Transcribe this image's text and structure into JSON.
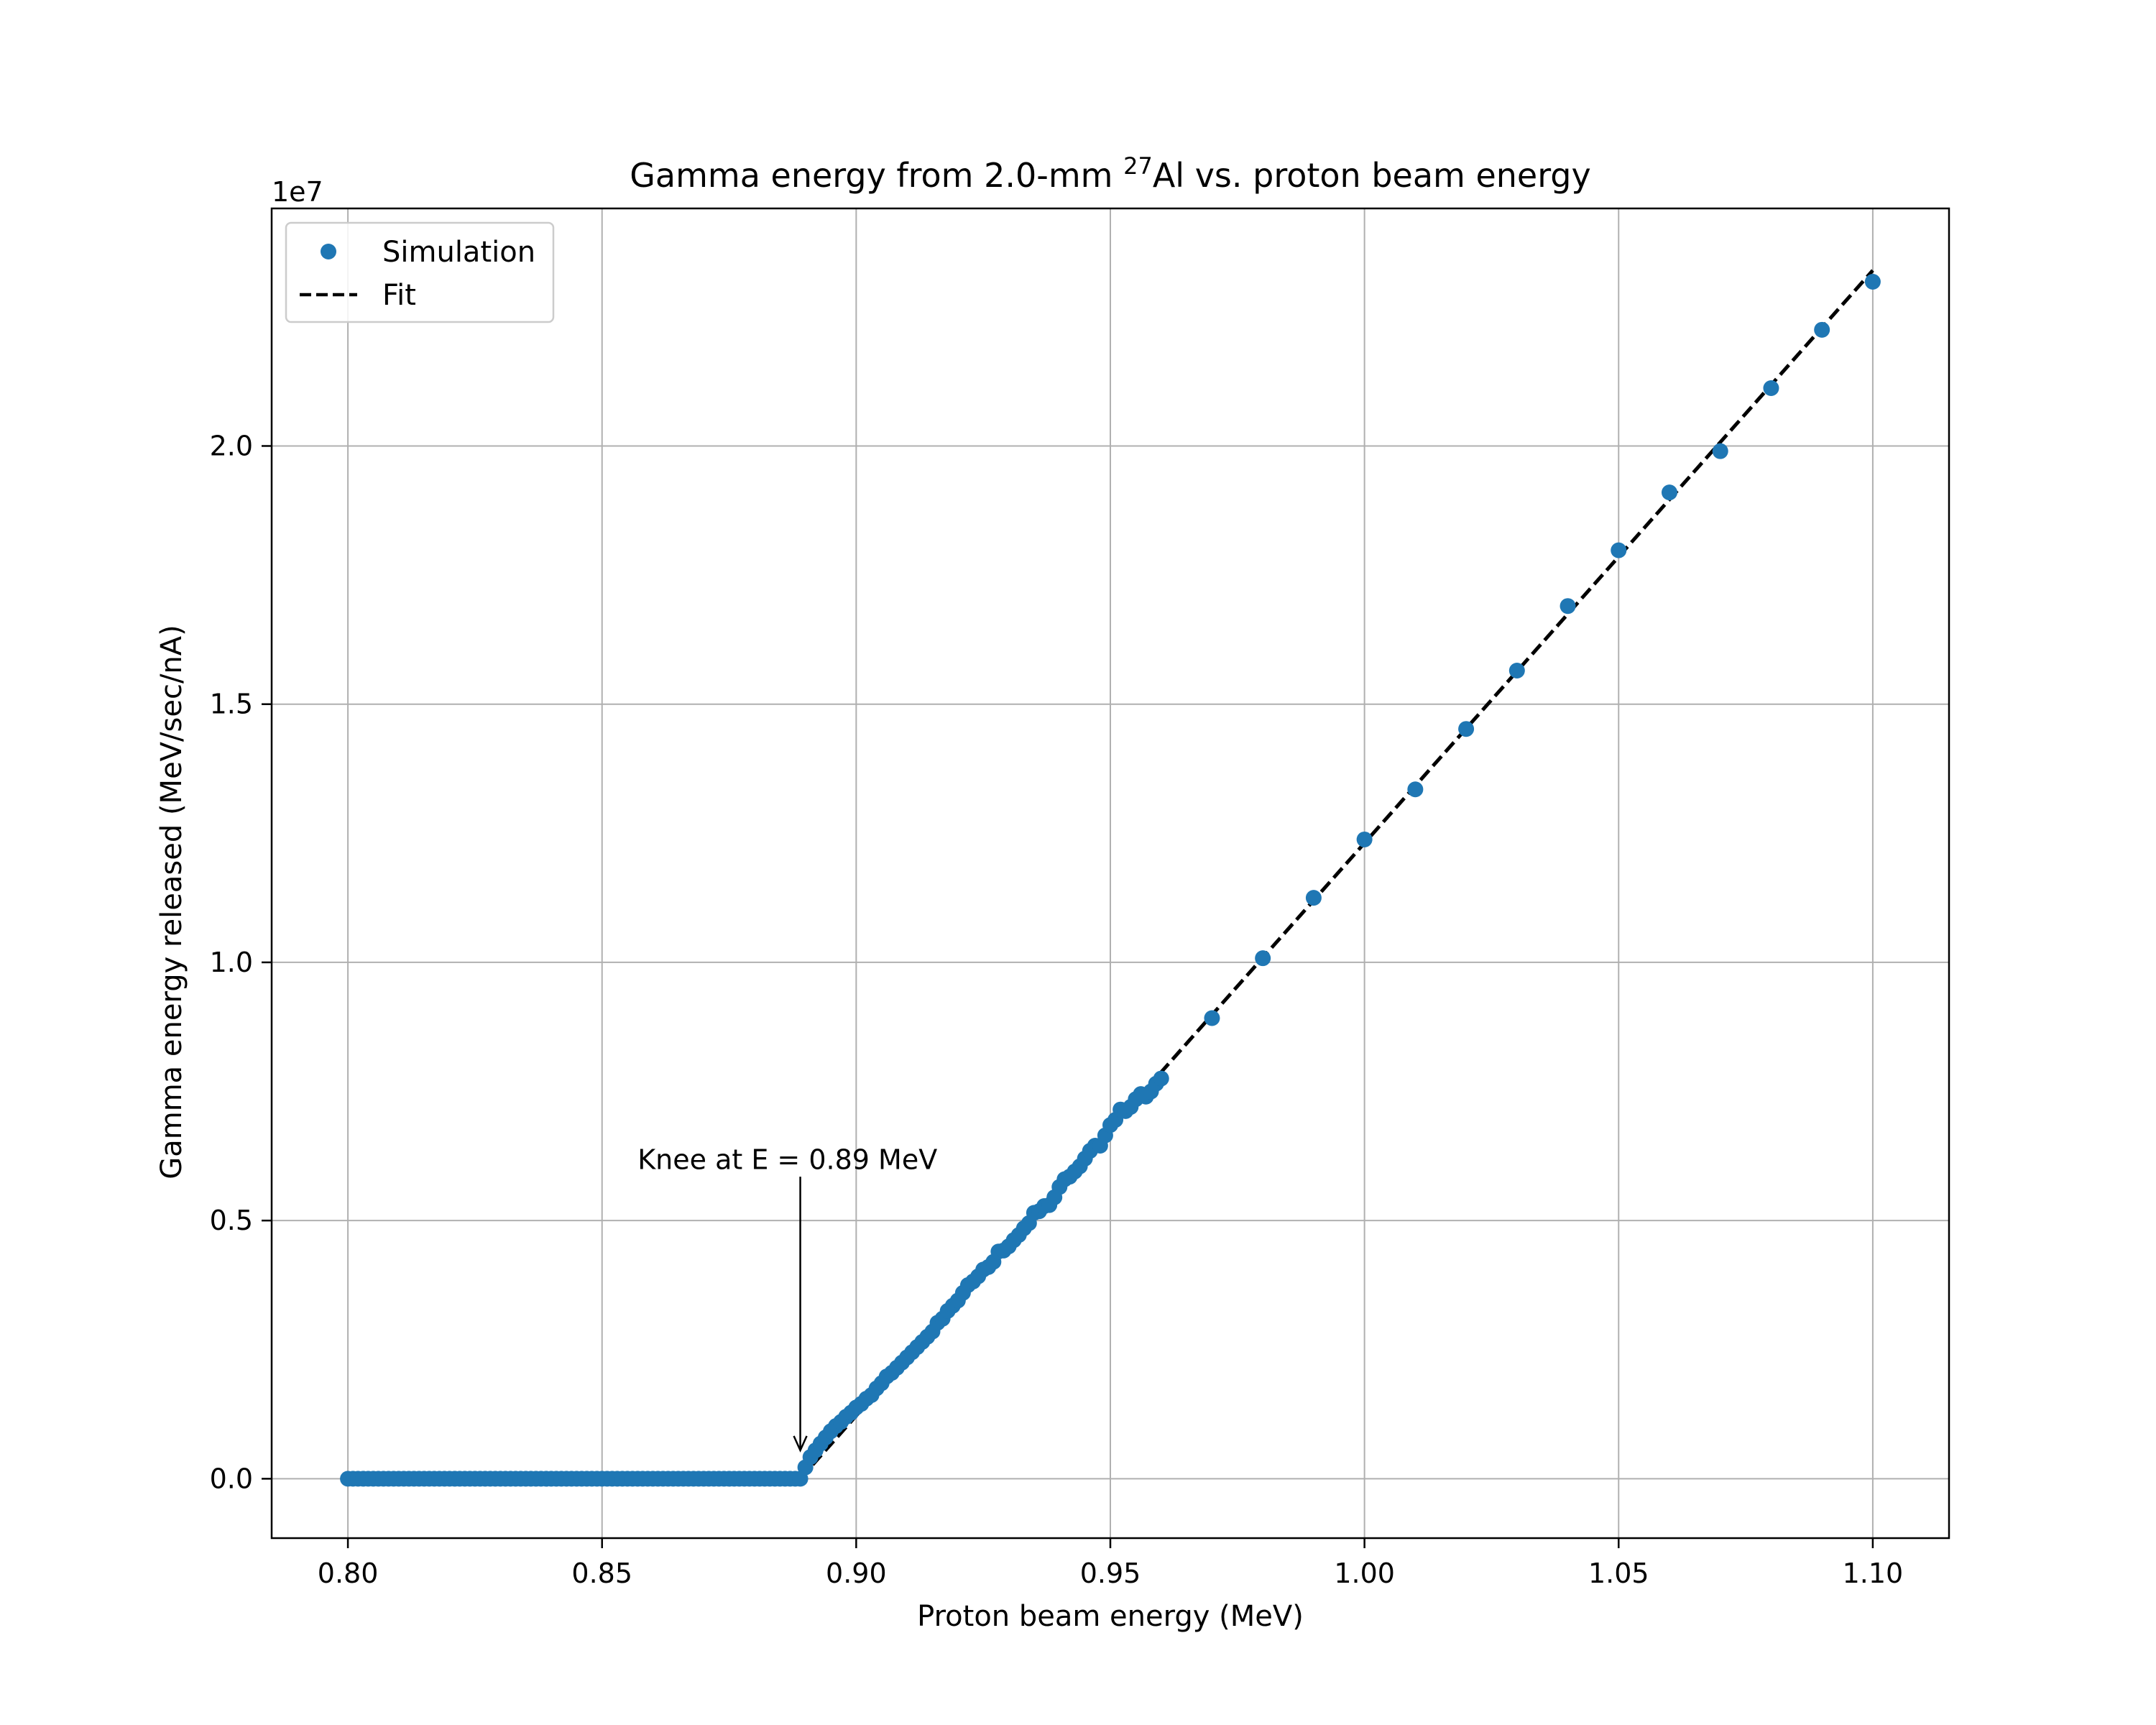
{
  "chart_data": {
    "type": "scatter",
    "title_main": "Gamma energy from 2.0-mm ",
    "title_sup": "27",
    "title_rest": "Al vs. proton beam energy",
    "xlabel": "Proton beam energy (MeV)",
    "ylabel": "Gamma energy released (MeV/sec/nA)",
    "y_offset_label": "1e7",
    "xlim": [
      0.785,
      1.115
    ],
    "ylim": [
      -1.15,
      24.6
    ],
    "y_scale_note": "y values in units of 1e6",
    "x_ticks": [
      0.8,
      0.85,
      0.9,
      0.95,
      1.0,
      1.05,
      1.1
    ],
    "x_tick_labels": [
      "0.80",
      "0.85",
      "0.90",
      "0.95",
      "1.00",
      "1.05",
      "1.10"
    ],
    "y_ticks": [
      0,
      5,
      10,
      15,
      20
    ],
    "y_tick_labels": [
      "0.0",
      "0.5",
      "1.0",
      "1.5",
      "2.0"
    ],
    "grid": true,
    "legend_position": "top-left",
    "legend": [
      {
        "name": "Simulation",
        "marker": "dot"
      },
      {
        "name": "Fit",
        "marker": "dashed-line"
      }
    ],
    "series": [
      {
        "name": "Simulation",
        "color": "#1f77b4",
        "flat_range": {
          "x_start": 0.8,
          "x_end": 0.889,
          "step": 0.001,
          "y": 0
        },
        "points": [
          [
            0.89,
            0.22
          ],
          [
            0.891,
            0.42
          ],
          [
            0.892,
            0.55
          ],
          [
            0.893,
            0.68
          ],
          [
            0.894,
            0.8
          ],
          [
            0.895,
            0.92
          ],
          [
            0.896,
            1.02
          ],
          [
            0.897,
            1.1
          ],
          [
            0.898,
            1.2
          ],
          [
            0.899,
            1.28
          ],
          [
            0.9,
            1.38
          ],
          [
            0.901,
            1.45
          ],
          [
            0.902,
            1.55
          ],
          [
            0.903,
            1.62
          ],
          [
            0.904,
            1.75
          ],
          [
            0.905,
            1.85
          ],
          [
            0.906,
            1.98
          ],
          [
            0.907,
            2.05
          ],
          [
            0.908,
            2.15
          ],
          [
            0.909,
            2.25
          ],
          [
            0.91,
            2.35
          ],
          [
            0.911,
            2.45
          ],
          [
            0.912,
            2.55
          ],
          [
            0.913,
            2.65
          ],
          [
            0.914,
            2.75
          ],
          [
            0.915,
            2.85
          ],
          [
            0.916,
            3.02
          ],
          [
            0.917,
            3.1
          ],
          [
            0.918,
            3.25
          ],
          [
            0.919,
            3.35
          ],
          [
            0.92,
            3.45
          ],
          [
            0.921,
            3.6
          ],
          [
            0.922,
            3.75
          ],
          [
            0.923,
            3.82
          ],
          [
            0.924,
            3.92
          ],
          [
            0.925,
            4.05
          ],
          [
            0.926,
            4.1
          ],
          [
            0.927,
            4.2
          ],
          [
            0.928,
            4.4
          ],
          [
            0.929,
            4.42
          ],
          [
            0.93,
            4.5
          ],
          [
            0.931,
            4.62
          ],
          [
            0.932,
            4.72
          ],
          [
            0.933,
            4.85
          ],
          [
            0.934,
            4.95
          ],
          [
            0.935,
            5.15
          ],
          [
            0.936,
            5.18
          ],
          [
            0.937,
            5.28
          ],
          [
            0.938,
            5.3
          ],
          [
            0.939,
            5.45
          ],
          [
            0.94,
            5.65
          ],
          [
            0.941,
            5.8
          ],
          [
            0.942,
            5.85
          ],
          [
            0.943,
            5.95
          ],
          [
            0.944,
            6.05
          ],
          [
            0.945,
            6.2
          ],
          [
            0.946,
            6.35
          ],
          [
            0.947,
            6.45
          ],
          [
            0.948,
            6.45
          ],
          [
            0.949,
            6.65
          ],
          [
            0.95,
            6.85
          ],
          [
            0.951,
            6.95
          ],
          [
            0.952,
            7.15
          ],
          [
            0.953,
            7.12
          ],
          [
            0.954,
            7.2
          ],
          [
            0.955,
            7.35
          ],
          [
            0.956,
            7.45
          ],
          [
            0.957,
            7.4
          ],
          [
            0.958,
            7.5
          ],
          [
            0.959,
            7.65
          ],
          [
            0.96,
            7.75
          ],
          [
            0.97,
            8.92
          ],
          [
            0.98,
            10.08
          ],
          [
            0.99,
            11.25
          ],
          [
            1.0,
            12.38
          ],
          [
            1.01,
            13.35
          ],
          [
            1.02,
            14.52
          ],
          [
            1.03,
            15.65
          ],
          [
            1.04,
            16.9
          ],
          [
            1.05,
            17.98
          ],
          [
            1.06,
            19.1
          ],
          [
            1.07,
            19.9
          ],
          [
            1.08,
            21.12
          ],
          [
            1.09,
            22.25
          ],
          [
            1.1,
            23.18
          ]
        ]
      },
      {
        "name": "Fit",
        "color": "#000000",
        "style": "dashed",
        "points": [
          [
            0.889,
            0
          ],
          [
            1.1,
            23.4
          ]
        ]
      }
    ],
    "annotation": {
      "text": "Knee at E = 0.89 MeV",
      "text_at": [
        0.857,
        6.0
      ],
      "arrow_from": [
        0.889,
        5.85
      ],
      "arrow_to": [
        0.889,
        0.55
      ]
    }
  }
}
